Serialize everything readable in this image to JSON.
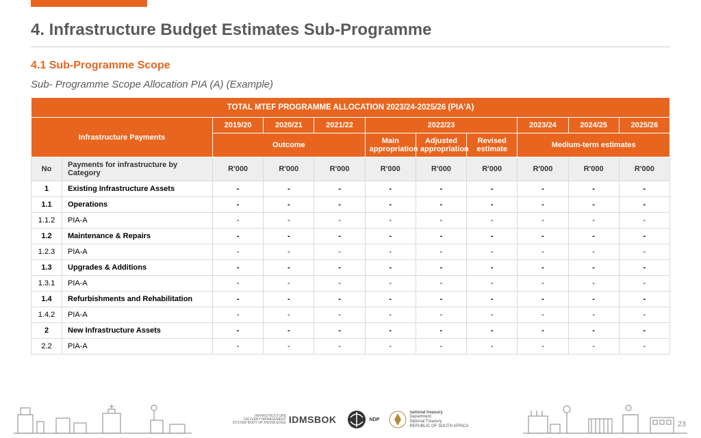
{
  "accent_color": "#e8651f",
  "title": "4. Infrastructure Budget Estimates Sub-Programme",
  "section": "4.1 Sub-Programme Scope",
  "caption": "Sub- Programme Scope Allocation PIA (A) (Example)",
  "banner": "TOTAL MTEF PROGRAMME ALLOCATION 2023/24-2025/26 (PIA'A)",
  "col_group_label": "Infrastructure Payments",
  "years": [
    "2019/20",
    "2020/21",
    "2021/22",
    "2022/23",
    "2023/24",
    "2024/25",
    "2025/26"
  ],
  "outcome_label": "Outcome",
  "mte_label": "Medium-term estimates",
  "cur_main": "Main appropriation",
  "cur_adj": "Adjusted appropriation",
  "cur_rev": "Revised estimate",
  "sub_no": "No",
  "sub_cat": "Payments for infrastructure by Category",
  "unit": "R'000",
  "rows": [
    {
      "no": "1",
      "label": "Existing Infrastructure Assets",
      "bold": true
    },
    {
      "no": "1.1",
      "label": "Operations",
      "bold": true
    },
    {
      "no": "1.1.2",
      "label": "PIA-A",
      "bold": false
    },
    {
      "no": "1.2",
      "label": "Maintenance & Repairs",
      "bold": true
    },
    {
      "no": "1.2.3",
      "label": "PIA-A",
      "bold": false
    },
    {
      "no": "1.3",
      "label": "Upgrades & Additions",
      "bold": true
    },
    {
      "no": "1.3.1",
      "label": "PIA-A",
      "bold": false
    },
    {
      "no": "1.4",
      "label": "Refurbishments and Rehabilitation",
      "bold": true
    },
    {
      "no": "1.4.2",
      "label": "PIA-A",
      "bold": false
    },
    {
      "no": "2",
      "label": "New Infrastructure Assets",
      "bold": true
    },
    {
      "no": "2.2",
      "label": "PIA-A",
      "bold": false
    }
  ],
  "dash": "-",
  "footer": {
    "idms_small": "INFRASTRUCTURE\nDELIVERY MANAGEMENT\nSYSTEM BODY OF KNOWLEDGE",
    "idms": "IDMSBOK",
    "ndp": "NDP",
    "nt_line1": "national treasury",
    "nt_line2": "Department:\nNational Treasury\nREPUBLIC OF SOUTH AFRICA"
  },
  "page_number": "23"
}
